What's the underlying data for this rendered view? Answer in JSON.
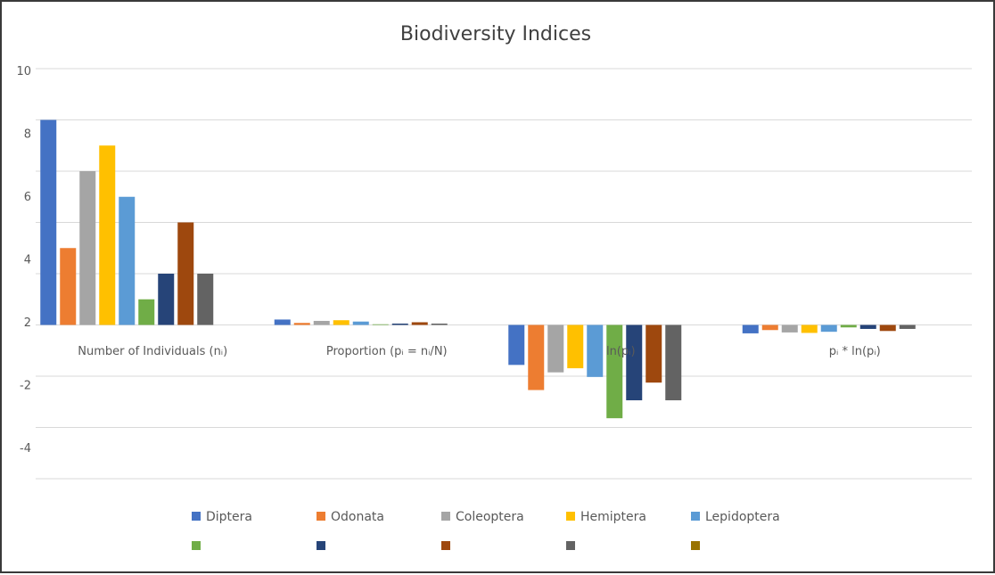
{
  "chart_data": {
    "type": "bar",
    "title": "Biodiversity Indices",
    "categories": [
      "Number of Individuals (nᵢ)",
      "Proportion (pᵢ = nᵢ/N)",
      "ln(pᵢ)",
      "pᵢ * ln(pᵢ)"
    ],
    "ylim": [
      -6,
      10
    ],
    "grid_step": 2,
    "y_tick_labels": [
      "10",
      "8",
      "6",
      "4",
      "2",
      "-2",
      "-4"
    ],
    "grid": true,
    "legend_placement": "bottom",
    "series": [
      {
        "name": "Diptera",
        "color": "#4472C4",
        "values": [
          8,
          0.211,
          -1.56,
          -0.328
        ]
      },
      {
        "name": "Odonata",
        "color": "#ED7D31",
        "values": [
          3,
          0.079,
          -2.54,
          -0.2
        ]
      },
      {
        "name": "Coleoptera",
        "color": "#A5A5A5",
        "values": [
          6,
          0.158,
          -1.85,
          -0.292
        ]
      },
      {
        "name": "Hemiptera",
        "color": "#FFC000",
        "values": [
          7,
          0.184,
          -1.69,
          -0.311
        ]
      },
      {
        "name": "Lepidoptera",
        "color": "#5B9BD5",
        "values": [
          5,
          0.132,
          -2.03,
          -0.267
        ]
      },
      {
        "name": "",
        "color": "#70AD47",
        "values": [
          1,
          0.026,
          -3.64,
          -0.096
        ]
      },
      {
        "name": "",
        "color": "#264478",
        "values": [
          2,
          0.053,
          -2.94,
          -0.155
        ]
      },
      {
        "name": "",
        "color": "#9E480E",
        "values": [
          4,
          0.105,
          -2.25,
          -0.236
        ]
      },
      {
        "name": "",
        "color": "#636363",
        "values": [
          2,
          0.053,
          -2.94,
          -0.155
        ]
      },
      {
        "name": "",
        "color": "#997300",
        "values": [
          0,
          0,
          0,
          0
        ]
      }
    ]
  }
}
